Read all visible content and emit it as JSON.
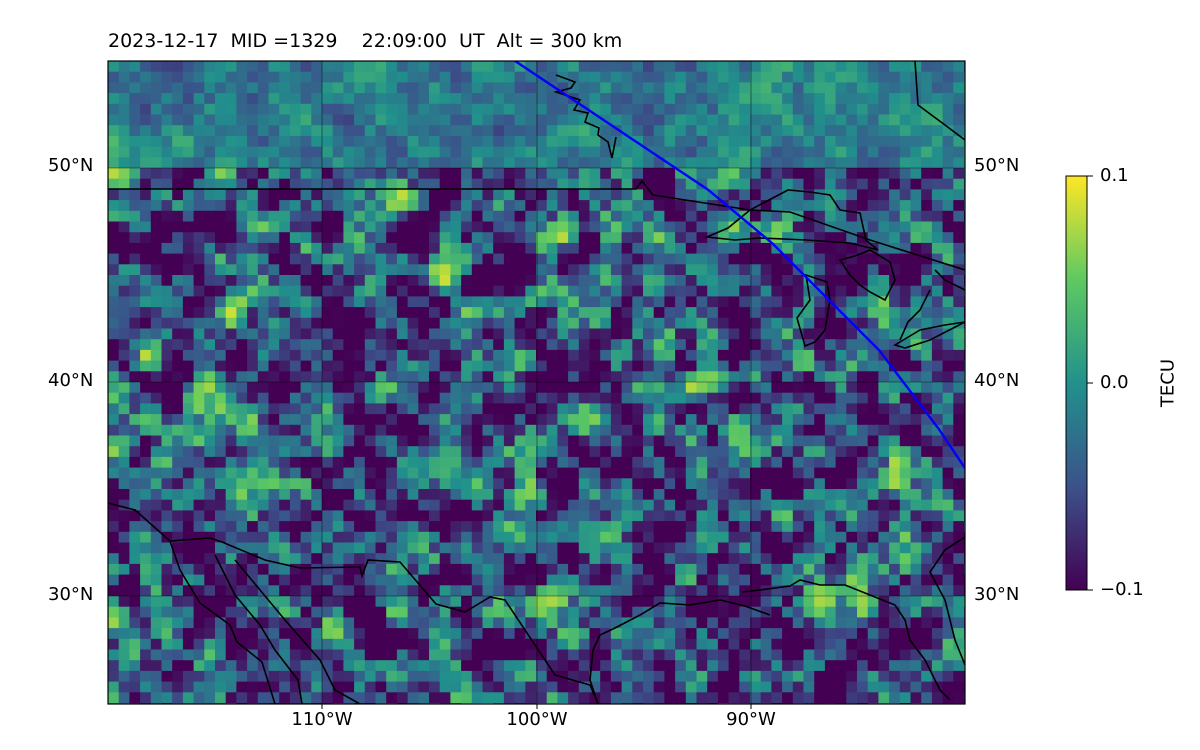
{
  "title": {
    "date": "2023-12-17",
    "mid": "MID =1329",
    "time": "22:09:00  UT",
    "alt": "Alt = 300 km"
  },
  "map": {
    "type": "heatmap",
    "projection": "lat-lon",
    "lon_range": [
      -120,
      -80
    ],
    "lat_range": [
      25,
      55
    ],
    "gridlines": true,
    "lat_ticks": [
      "30°N",
      "40°N",
      "50°N"
    ],
    "lon_ticks": [
      "110°W",
      "100°W",
      "90°W"
    ],
    "track_color": "#0000ff",
    "coastline_color": "#000000",
    "track_points": [
      [
        -101,
        55
      ],
      [
        -98,
        53
      ],
      [
        -95,
        51
      ],
      [
        -92,
        49
      ],
      [
        -89,
        46.5
      ],
      [
        -86.5,
        44
      ],
      [
        -84,
        41.5
      ],
      [
        -81.2,
        37.8
      ],
      [
        -80,
        36
      ]
    ]
  },
  "colorbar": {
    "label": "TECU",
    "min": -0.1,
    "max": 0.1,
    "tick_labels": [
      "0.1",
      "0.0",
      "−0.1"
    ],
    "colormap": "viridis",
    "stops": [
      "#440154",
      "#3b528b",
      "#21918c",
      "#5ec962",
      "#fde725"
    ]
  }
}
